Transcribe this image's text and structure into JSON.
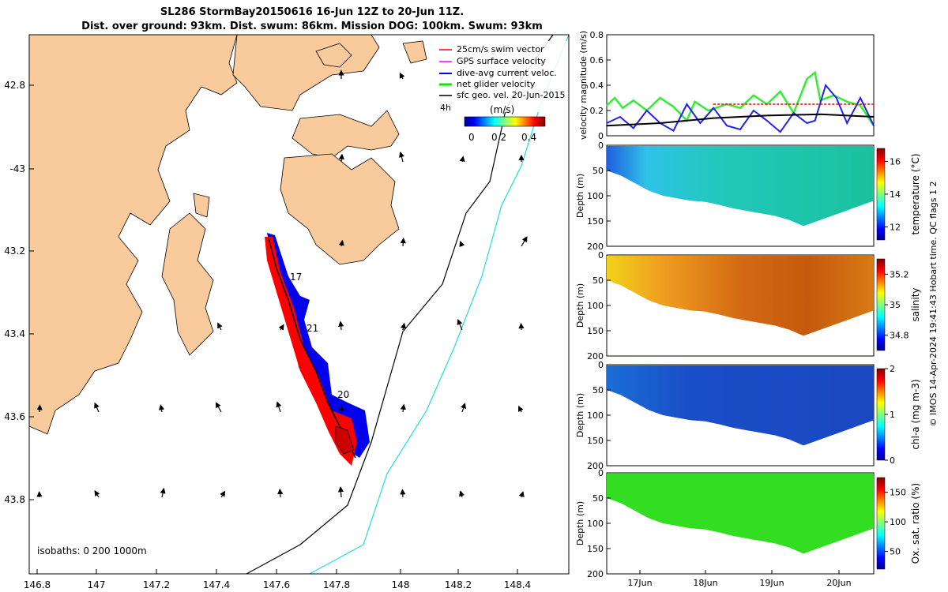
{
  "title": {
    "line1": "SL286 StormBay20150616 16-Jun 12Z to 20-Jun 11Z.",
    "line2": "Dist. over ground: 93km. Dist. swum: 86km. Mission DOG: 100km. Swum: 93km"
  },
  "map": {
    "lon_ticks": [
      "146.8",
      "147",
      "147.2",
      "147.4",
      "147.6",
      "147.8",
      "148",
      "148.2",
      "148.4"
    ],
    "lat_ticks": [
      "42.8",
      "-43",
      "43.2",
      "43.4",
      "43.6",
      "43.8"
    ],
    "legend": [
      {
        "label": "25cm/s swim vector",
        "color": "#ff0000"
      },
      {
        "label": "GPS surface velocity",
        "color": "#ff00ff"
      },
      {
        "label": "dive-avg current veloc.",
        "color": "#0000ff"
      },
      {
        "label": "net glider velocity",
        "color": "#00ee00"
      },
      {
        "label": "sfc geo. vel. 20-Jun-2015",
        "color": "#000000"
      }
    ],
    "time_label": "4h",
    "colorbar": {
      "label": "(m/s)",
      "ticks": [
        "0",
        "0.2",
        "0.4"
      ]
    },
    "track_labels": [
      "17",
      "21",
      "20"
    ],
    "isobaths_label": "isobaths: 0   200  1000m",
    "land_color": "#f9cb9c",
    "isobath_200_color": "#000000",
    "isobath_1000_color": "#00dddd"
  },
  "chart_data": [
    {
      "type": "line",
      "title": "",
      "ylabel": "velocity magnitude (m/s)",
      "ylim": [
        0,
        0.8
      ],
      "yticks": [
        "0",
        "0.2",
        "0.4",
        "0.6",
        "0.8"
      ],
      "series": [
        {
          "name": "net glider velocity",
          "color": "#33ee33",
          "x": [
            0,
            0.03,
            0.06,
            0.1,
            0.15,
            0.2,
            0.25,
            0.3,
            0.33,
            0.38,
            0.45,
            0.5,
            0.55,
            0.6,
            0.65,
            0.7,
            0.75,
            0.78,
            0.8,
            0.85,
            0.9,
            0.95,
            1.0
          ],
          "values": [
            0.24,
            0.3,
            0.22,
            0.28,
            0.2,
            0.3,
            0.23,
            0.12,
            0.27,
            0.2,
            0.25,
            0.22,
            0.32,
            0.25,
            0.35,
            0.18,
            0.45,
            0.5,
            0.28,
            0.32,
            0.27,
            0.24,
            0.08
          ]
        },
        {
          "name": "dive-avg current veloc.",
          "color": "#2222ee",
          "x": [
            0,
            0.05,
            0.1,
            0.15,
            0.2,
            0.25,
            0.3,
            0.35,
            0.4,
            0.45,
            0.5,
            0.55,
            0.6,
            0.65,
            0.7,
            0.75,
            0.78,
            0.82,
            0.86,
            0.9,
            0.95,
            1.0
          ],
          "values": [
            0.1,
            0.15,
            0.06,
            0.2,
            0.1,
            0.04,
            0.25,
            0.1,
            0.22,
            0.08,
            0.05,
            0.2,
            0.12,
            0.03,
            0.18,
            0.1,
            0.12,
            0.4,
            0.3,
            0.1,
            0.3,
            0.08
          ]
        },
        {
          "name": "sfc geo. vel.",
          "color": "#000000",
          "x": [
            0,
            0.2,
            0.4,
            0.6,
            0.8,
            1.0
          ],
          "values": [
            0.08,
            0.1,
            0.14,
            0.16,
            0.17,
            0.15
          ]
        },
        {
          "name": "25cm/s swim vector",
          "color": "#ff0000",
          "x": [
            0.4,
            1.0
          ],
          "values": [
            0.25,
            0.25
          ]
        }
      ]
    },
    {
      "type": "heatmap",
      "ylabel": "Depth (m)",
      "colorbar_label": "temperature (°C)",
      "ylim": [
        200,
        0
      ],
      "yticks": [
        "0",
        "50",
        "100",
        "150",
        "200"
      ],
      "cbar_ticks": [
        "12",
        "14",
        "16"
      ],
      "cbar_range": [
        11.2,
        16.8
      ],
      "bottom_depth_profile": [
        50,
        60,
        75,
        90,
        100,
        105,
        110,
        112,
        118,
        125,
        130,
        135,
        140,
        148,
        160,
        150,
        140,
        130,
        120,
        110
      ]
    },
    {
      "type": "heatmap",
      "ylabel": "Depth (m)",
      "colorbar_label": "salinity",
      "ylim": [
        200,
        0
      ],
      "yticks": [
        "0",
        "50",
        "100",
        "150",
        "200"
      ],
      "cbar_ticks": [
        "34.8",
        "35",
        "35.2"
      ],
      "cbar_range": [
        34.7,
        35.3
      ]
    },
    {
      "type": "heatmap",
      "ylabel": "Depth (m)",
      "colorbar_label": "chl-a (mg m-3)",
      "ylim": [
        200,
        0
      ],
      "yticks": [
        "0",
        "50",
        "100",
        "150",
        "200"
      ],
      "cbar_ticks": [
        "0",
        "1",
        "2"
      ],
      "cbar_range": [
        0,
        2
      ]
    },
    {
      "type": "heatmap",
      "ylabel": "Depth (m)",
      "colorbar_label": "Ox. sat. ratio (%)",
      "ylim": [
        200,
        0
      ],
      "yticks": [
        "0",
        "50",
        "100",
        "150",
        "200"
      ],
      "cbar_ticks": [
        "50",
        "100",
        "150"
      ],
      "cbar_range": [
        20,
        175
      ],
      "xticks": [
        "17Jun",
        "18Jun",
        "19Jun",
        "20Jun"
      ]
    }
  ],
  "footer": "© IMOS 14-Apr-2024 19:41:43 Hobart time. QC flags 1  2"
}
